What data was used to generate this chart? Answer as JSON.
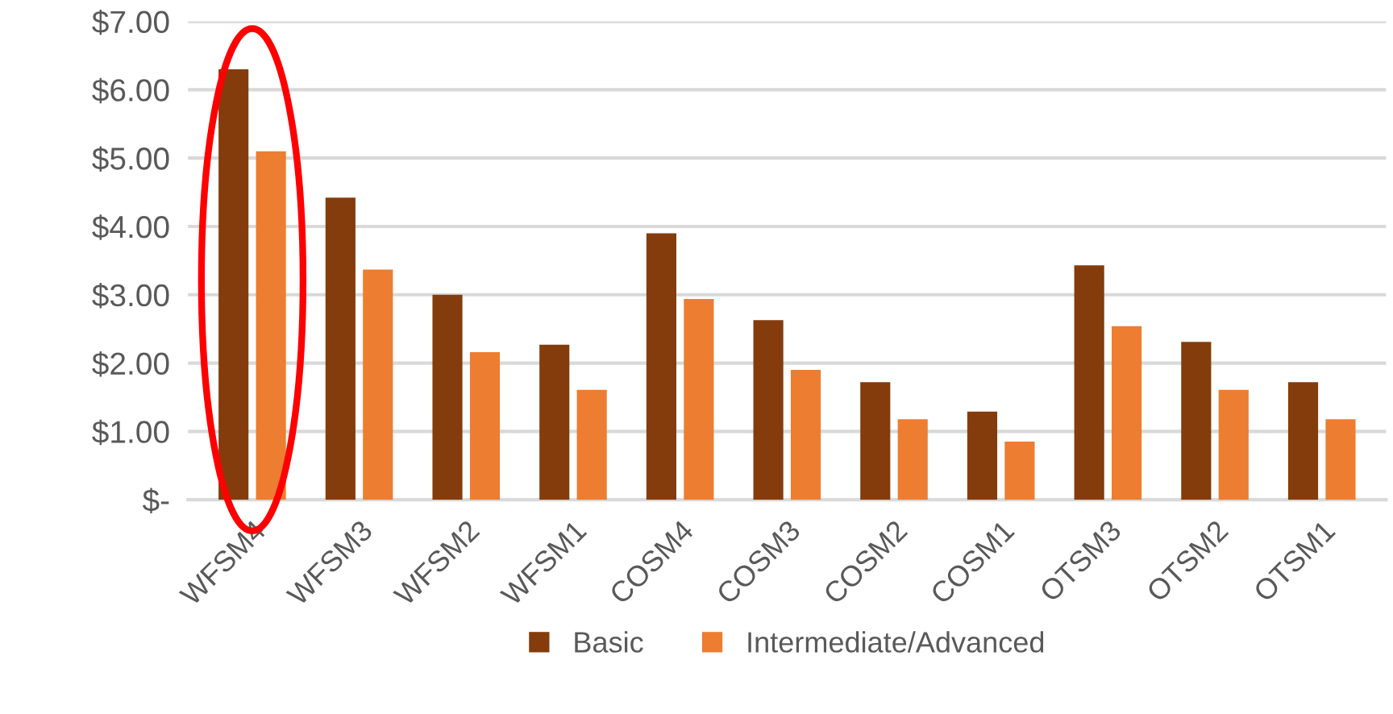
{
  "chart_data": {
    "type": "bar",
    "categories": [
      "WFSM4",
      "WFSM3",
      "WFSM2",
      "WFSM1",
      "COSM4",
      "COSM3",
      "COSM2",
      "COSM1",
      "OTSM3",
      "OTSM2",
      "OTSM1"
    ],
    "series": [
      {
        "name": "Basic",
        "color": "#843c0c",
        "values": [
          6.3,
          4.42,
          3.0,
          2.27,
          3.9,
          2.63,
          1.72,
          1.29,
          3.43,
          2.31,
          1.72
        ]
      },
      {
        "name": "Intermediate/Advanced",
        "color": "#ed7d31",
        "values": [
          5.1,
          3.37,
          2.16,
          1.61,
          2.94,
          1.9,
          1.18,
          0.85,
          2.54,
          1.61,
          1.18
        ]
      }
    ],
    "ylim": [
      0,
      7
    ],
    "yticks": [
      {
        "value": 0,
        "label": "$-"
      },
      {
        "value": 1,
        "label": "$1.00"
      },
      {
        "value": 2,
        "label": "$2.00"
      },
      {
        "value": 3,
        "label": "$3.00"
      },
      {
        "value": 4,
        "label": "$4.00"
      },
      {
        "value": 5,
        "label": "$5.00"
      },
      {
        "value": 6,
        "label": "$6.00"
      },
      {
        "value": 7,
        "label": "$7.00"
      }
    ],
    "grid": "y",
    "legend": "bottom"
  }
}
